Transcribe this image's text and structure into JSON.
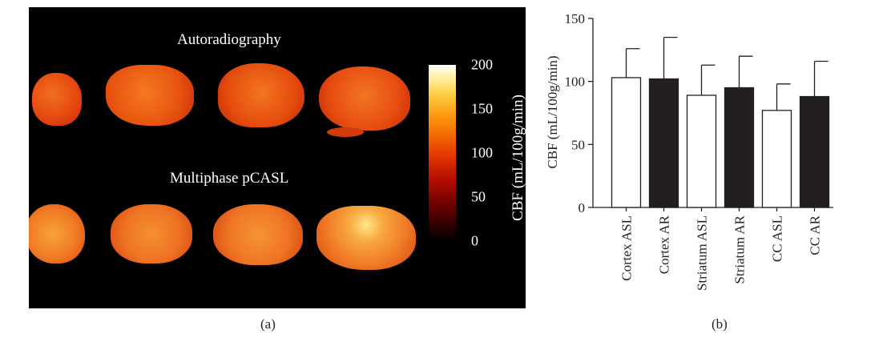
{
  "panel_a": {
    "heading_top": "Autoradiography",
    "heading_bottom": "Multiphase pCASL",
    "colorbar": {
      "label": "CBF (mL/100g/min)",
      "ticks": [
        "200",
        "150",
        "100",
        "50",
        "0"
      ],
      "range": [
        0,
        200
      ],
      "colors": [
        "#000000",
        "#b00c00",
        "#f56a00",
        "#fdd24a",
        "#ffffff"
      ]
    },
    "caption": "(a)"
  },
  "panel_b": {
    "caption": "(b)"
  },
  "chart_data": {
    "type": "bar",
    "categories": [
      "Cortex ASL",
      "Cortex AR",
      "Striatum ASL",
      "Striatum AR",
      "CC ASL",
      "CC AR"
    ],
    "values": [
      103,
      102,
      89,
      95,
      77,
      88
    ],
    "error": [
      23,
      33,
      24,
      25,
      21,
      28
    ],
    "fills": [
      "#ffffff",
      "#231f20",
      "#ffffff",
      "#231f20",
      "#ffffff",
      "#231f20"
    ],
    "title": "",
    "xlabel": "",
    "ylabel": "CBF (mL/100g/min)",
    "ylim": [
      0,
      150
    ],
    "yticks": [
      "0",
      "50",
      "100",
      "150"
    ],
    "grid": false
  }
}
